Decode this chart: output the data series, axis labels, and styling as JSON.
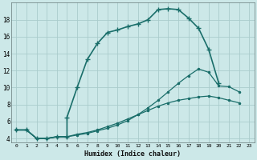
{
  "xlabel": "Humidex (Indice chaleur)",
  "bg_color": "#cce8e8",
  "grid_color": "#aacccc",
  "line_color": "#1a6e6a",
  "xlim": [
    -0.5,
    23.5
  ],
  "ylim": [
    3.5,
    20.0
  ],
  "yticks": [
    4,
    6,
    8,
    10,
    12,
    14,
    16,
    18
  ],
  "xticks": [
    0,
    1,
    2,
    3,
    4,
    5,
    6,
    7,
    8,
    9,
    10,
    11,
    12,
    13,
    14,
    15,
    16,
    17,
    18,
    19,
    20,
    21,
    22,
    23
  ],
  "line1_x": [
    0,
    1,
    2,
    3,
    4,
    5,
    5,
    6,
    7,
    8,
    9,
    10,
    11,
    12,
    13,
    14,
    15,
    16,
    17,
    18,
    19,
    20
  ],
  "line1_y": [
    5.0,
    5.0,
    4.0,
    4.0,
    4.2,
    4.2,
    6.5,
    10.0,
    13.3,
    15.2,
    16.5,
    16.8,
    17.2,
    17.5,
    18.0,
    19.2,
    19.3,
    19.2,
    18.2,
    17.0,
    14.5,
    10.5
  ],
  "line2_x": [
    0,
    1,
    2,
    3,
    4,
    5,
    6,
    7,
    8,
    9,
    10,
    11,
    12,
    13,
    14,
    15,
    16,
    17,
    18,
    19,
    20,
    21,
    22
  ],
  "line2_y": [
    5.0,
    5.0,
    4.0,
    4.0,
    4.2,
    4.2,
    4.5,
    4.7,
    5.0,
    5.4,
    5.8,
    6.3,
    6.8,
    7.3,
    7.8,
    8.2,
    8.5,
    8.7,
    8.9,
    9.0,
    8.8,
    8.5,
    8.2
  ],
  "line3_x": [
    0,
    1,
    2,
    3,
    4,
    5,
    6,
    7,
    8,
    9,
    10,
    11,
    12,
    13,
    14,
    15,
    16,
    17,
    18,
    19,
    20,
    21,
    22
  ],
  "line3_y": [
    5.0,
    5.0,
    4.0,
    4.0,
    4.2,
    4.2,
    4.4,
    4.6,
    4.9,
    5.2,
    5.6,
    6.1,
    6.8,
    7.6,
    8.5,
    9.5,
    10.5,
    11.4,
    12.2,
    11.8,
    10.2,
    10.1,
    9.5
  ]
}
